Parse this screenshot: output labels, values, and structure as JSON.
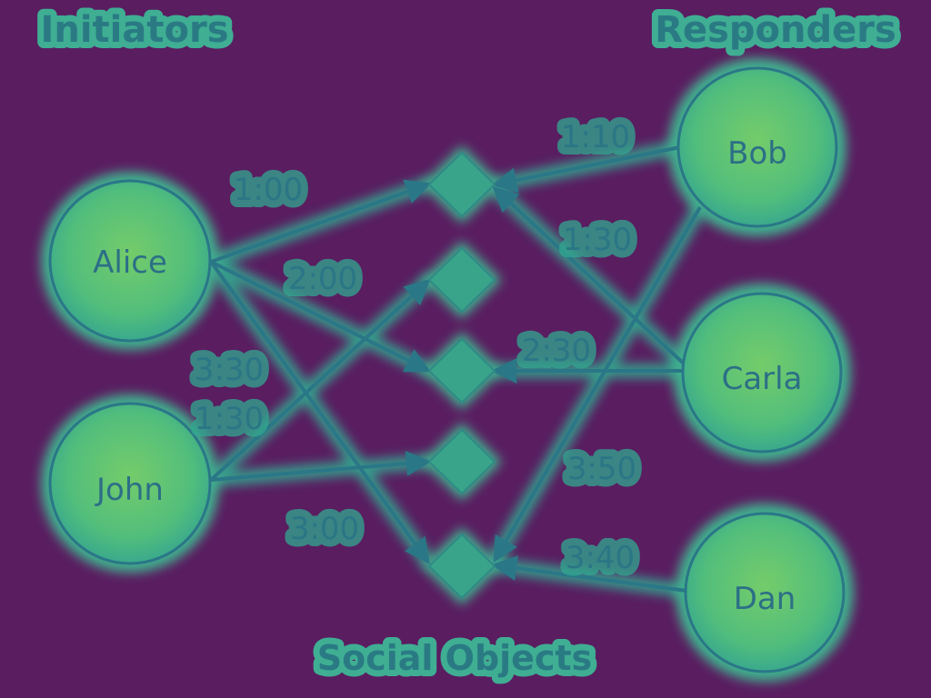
{
  "headings": {
    "initiators": "Initiators",
    "responders": "Responders",
    "social_objects": "Social Objects"
  },
  "nodes": {
    "alice": "Alice",
    "john": "John",
    "bob": "Bob",
    "carla": "Carla",
    "dan": "Dan"
  },
  "edges": [
    {
      "from": "Alice",
      "to": "object-1",
      "label": "1:00"
    },
    {
      "from": "Alice",
      "to": "object-3",
      "label": "2:00"
    },
    {
      "from": "Alice",
      "to": "object-5",
      "label": "3:30"
    },
    {
      "from": "John",
      "to": "object-2",
      "label": "1:30"
    },
    {
      "from": "John",
      "to": "object-4",
      "label": "3:00"
    },
    {
      "from": "Bob",
      "to": "object-1",
      "label": "1:10"
    },
    {
      "from": "Bob",
      "to": "object-5",
      "label": "3:50"
    },
    {
      "from": "Carla",
      "to": "object-1",
      "label": "1:30"
    },
    {
      "from": "Carla",
      "to": "object-3",
      "label": "2:30"
    },
    {
      "from": "Dan",
      "to": "object-5",
      "label": "3:40"
    }
  ],
  "colors": {
    "background": "#5a1d60",
    "glow": "#3fb28f",
    "node_fill": "#59c27a",
    "stroke": "#2a7787"
  }
}
